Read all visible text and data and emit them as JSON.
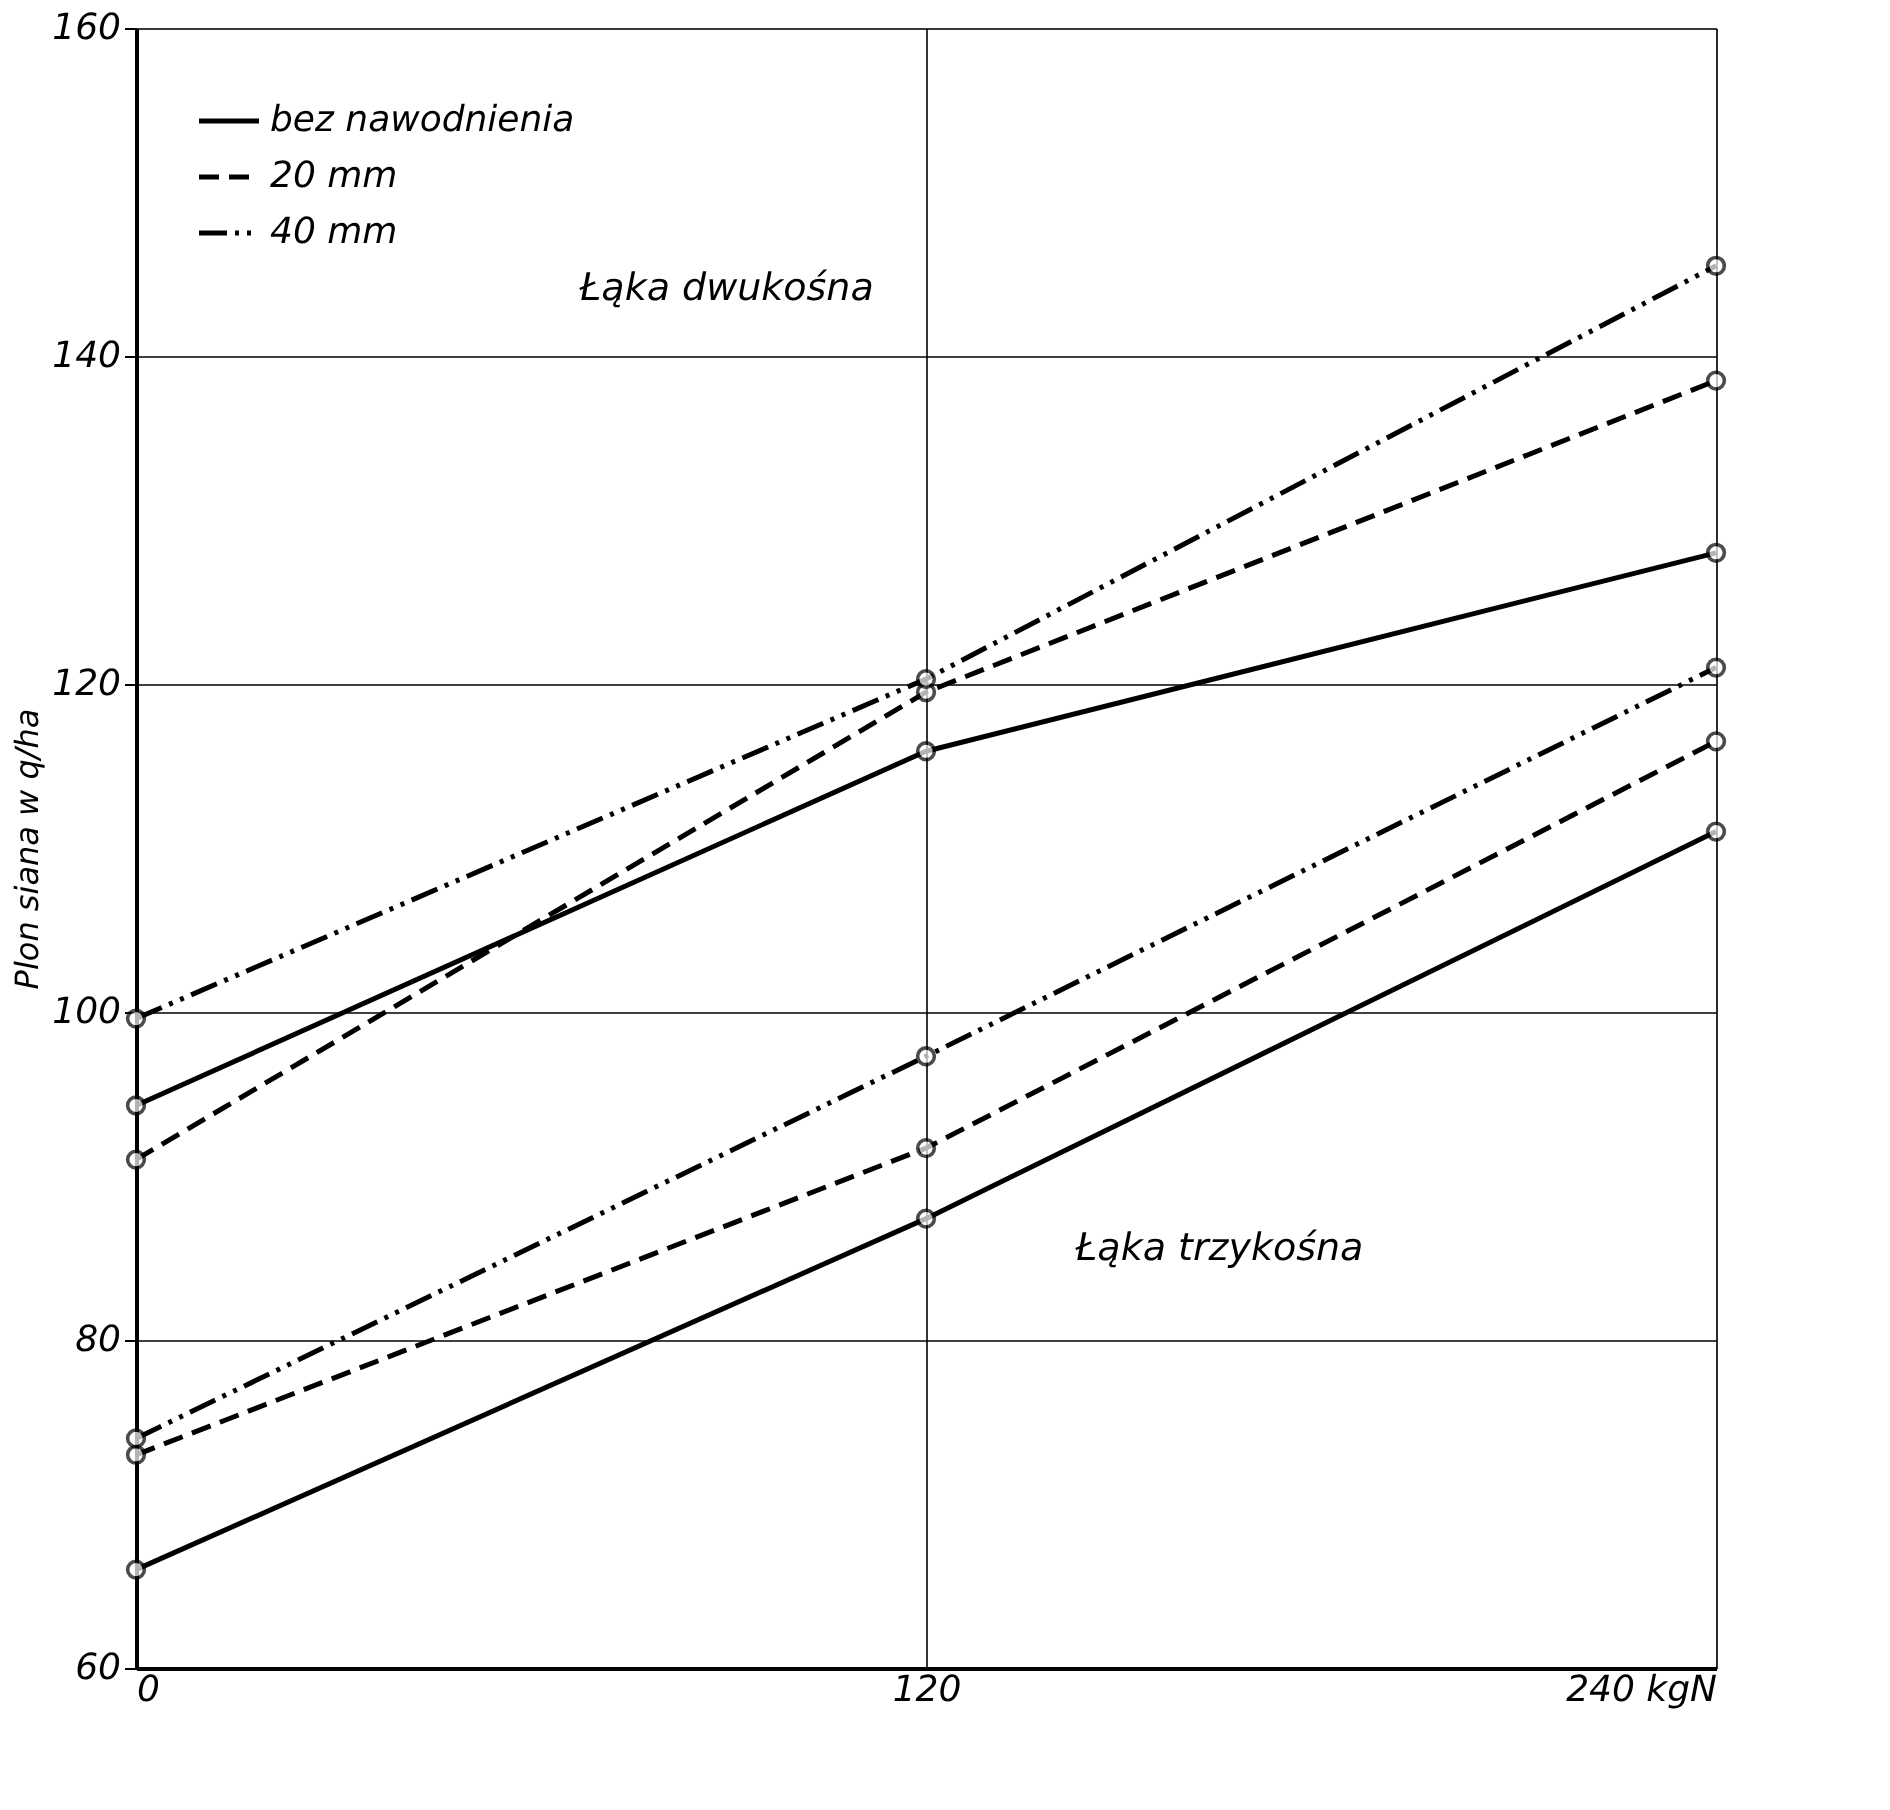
{
  "chart_data": {
    "type": "line",
    "ylabel": "Plon siana w q/ha",
    "x": [
      0,
      120,
      240
    ],
    "xlim": [
      0,
      240
    ],
    "xticks": [
      0,
      120,
      {
        "value": 240,
        "label": "240 kgN"
      }
    ],
    "ylim": [
      60,
      160
    ],
    "yticks": [
      60,
      80,
      100,
      120,
      140,
      160
    ],
    "grid": true,
    "legend": "top left",
    "marker": "circle",
    "series": [
      {
        "name": "bez nawodnienia",
        "color": "#000000",
        "line_style": "solid",
        "values": [
          94.3,
          115.9,
          128
        ]
      },
      {
        "name": "20 mm",
        "color": "#000000",
        "line_style": "dashed",
        "values": [
          91,
          119.5,
          138.5
        ]
      },
      {
        "name": "40 mm",
        "color": "#000000",
        "line_style": "dashdot",
        "values": [
          99.6,
          120.3,
          145.5
        ]
      },
      {
        "color": "#000000",
        "line_style": "solid",
        "values": [
          66,
          87.4,
          111
        ]
      },
      {
        "color": "#000000",
        "line_style": "dashed",
        "values": [
          73,
          91.7,
          116.5
        ]
      },
      {
        "color": "#000000",
        "line_style": "dashdot",
        "values": [
          74,
          97.3,
          121
        ]
      }
    ],
    "annotations": [
      "Łąka dwukośna",
      "Łąka trzykośna"
    ]
  }
}
